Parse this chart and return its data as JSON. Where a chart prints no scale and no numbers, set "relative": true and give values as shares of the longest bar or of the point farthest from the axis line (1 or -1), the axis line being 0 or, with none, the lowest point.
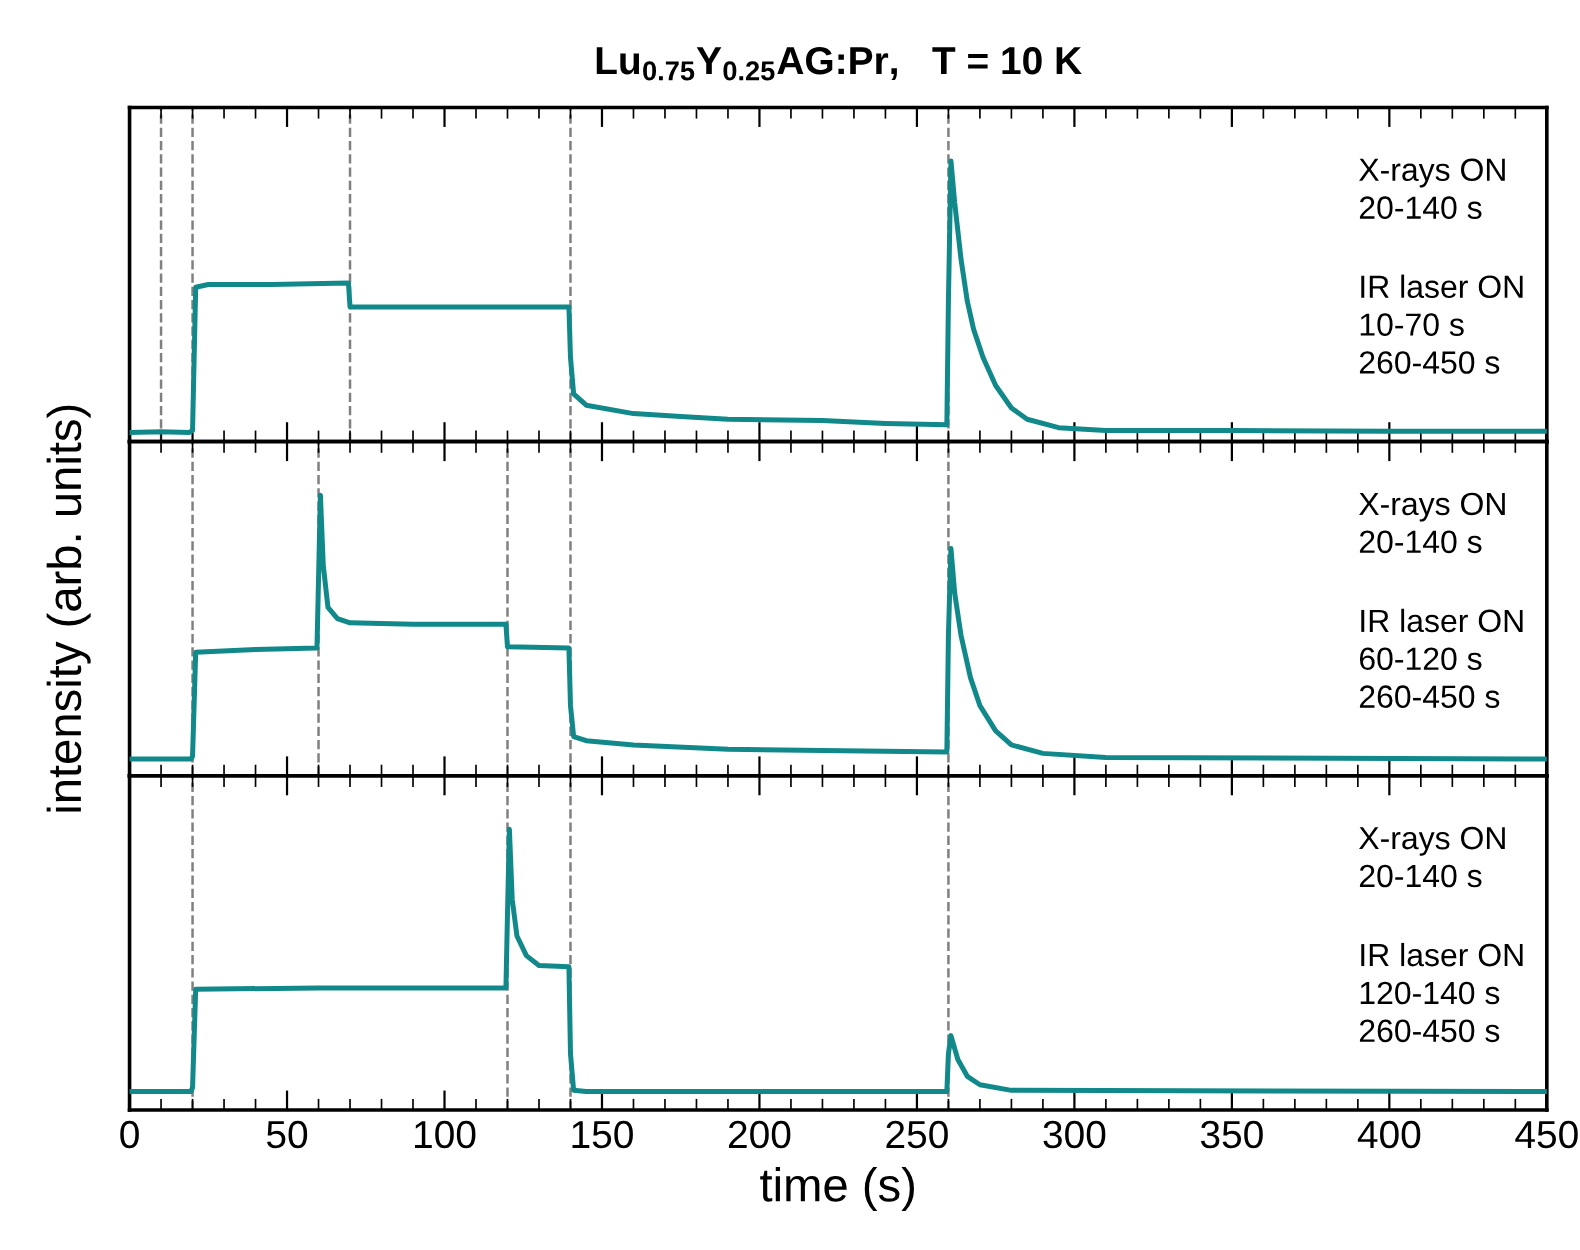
{
  "chart_data": [
    {
      "type": "line",
      "title": "Lu$_{0.75}$Y$_{0.25}$AG:Pr,   T = 10 K",
      "relative": true,
      "xlim": [
        0,
        450
      ],
      "tick_labels": false,
      "line_style": "solid",
      "marker": "none",
      "series": [
        {
          "color": "#11898a",
          "x": [
            0,
            10,
            19,
            20,
            21,
            25,
            45,
            69.5,
            70,
            100,
            139.5,
            140,
            141,
            145,
            160,
            175,
            190,
            220,
            240,
            259.5,
            260,
            260.8,
            262,
            264,
            266,
            268,
            271,
            275,
            280,
            285,
            295,
            310,
            350,
            400,
            450
          ],
          "values": [
            0.033,
            0.035,
            0.033,
            0.04,
            0.55,
            0.56,
            0.56,
            0.565,
            0.48,
            0.48,
            0.48,
            0.3,
            0.17,
            0.13,
            0.1,
            0.09,
            0.08,
            0.075,
            0.065,
            0.06,
            0.5,
            1,
            0.85,
            0.65,
            0.5,
            0.4,
            0.3,
            0.2,
            0.12,
            0.08,
            0.05,
            0.04,
            0.04,
            0.037,
            0.037
          ]
        }
      ],
      "ref_lines": [
        {
          "axis": "x",
          "value": 10,
          "color": "#808080",
          "line_style": "dashed"
        },
        {
          "axis": "x",
          "value": 20,
          "color": "#808080",
          "line_style": "dashed"
        },
        {
          "axis": "x",
          "value": 70,
          "color": "#808080",
          "line_style": "dashed"
        },
        {
          "axis": "x",
          "value": 140,
          "color": "#808080",
          "line_style": "dashed"
        },
        {
          "axis": "x",
          "value": 260,
          "color": "#808080",
          "line_style": "dashed"
        }
      ],
      "annotations": [
        "X-rays ON\n20-140 s",
        "IR laser ON\n10-70 s\n260-450 s"
      ]
    },
    {
      "type": "line",
      "ylabel": "intensity (arb. units)",
      "relative": true,
      "xlim": [
        0,
        450
      ],
      "tick_labels": false,
      "line_style": "solid",
      "marker": "none",
      "series": [
        {
          "color": "#11898a",
          "x": [
            0,
            19.5,
            20,
            21,
            40,
            59.5,
            60,
            60.6,
            61.5,
            63,
            66,
            70,
            90,
            119.5,
            120,
            139.5,
            140,
            141,
            145,
            160,
            190,
            220,
            259.5,
            260,
            260.8,
            262,
            264,
            267,
            270,
            275,
            280,
            290,
            310,
            450
          ],
          "values": [
            0.06,
            0.06,
            0.07,
            0.44,
            0.45,
            0.455,
            0.7,
            1,
            0.75,
            0.6,
            0.56,
            0.545,
            0.54,
            0.54,
            0.46,
            0.455,
            0.25,
            0.14,
            0.125,
            0.11,
            0.095,
            0.09,
            0.085,
            0.5,
            0.81,
            0.65,
            0.5,
            0.35,
            0.25,
            0.16,
            0.11,
            0.08,
            0.065,
            0.06
          ]
        }
      ],
      "ref_lines": [
        {
          "axis": "x",
          "value": 20,
          "color": "#808080",
          "line_style": "dashed"
        },
        {
          "axis": "x",
          "value": 60,
          "color": "#808080",
          "line_style": "dashed"
        },
        {
          "axis": "x",
          "value": 120,
          "color": "#808080",
          "line_style": "dashed"
        },
        {
          "axis": "x",
          "value": 140,
          "color": "#808080",
          "line_style": "dashed"
        },
        {
          "axis": "x",
          "value": 260,
          "color": "#808080",
          "line_style": "dashed"
        }
      ],
      "annotations": [
        "X-rays ON\n20-140 s",
        "IR laser ON\n60-120 s\n260-450 s"
      ]
    },
    {
      "type": "line",
      "xlabel": "time (s)",
      "relative": true,
      "xlim": [
        0,
        450
      ],
      "xticks": [
        0,
        50,
        100,
        150,
        200,
        250,
        300,
        350,
        400,
        450
      ],
      "tick_labels": "x",
      "line_style": "solid",
      "marker": "none",
      "series": [
        {
          "color": "#11898a",
          "x": [
            0,
            19.5,
            20,
            21,
            60,
            119.5,
            120,
            120.6,
            121.5,
            123,
            126,
            130,
            139.5,
            140,
            141,
            145,
            200,
            259.5,
            260,
            260.8,
            263,
            266,
            270,
            280,
            450
          ],
          "values": [
            0.066,
            0.066,
            0.08,
            0.43,
            0.435,
            0.435,
            0.7,
            1,
            0.75,
            0.62,
            0.55,
            0.515,
            0.51,
            0.2,
            0.07,
            0.066,
            0.066,
            0.066,
            0.2,
            0.265,
            0.18,
            0.12,
            0.09,
            0.07,
            0.066
          ]
        }
      ],
      "ref_lines": [
        {
          "axis": "x",
          "value": 20,
          "color": "#808080",
          "line_style": "dashed"
        },
        {
          "axis": "x",
          "value": 120,
          "color": "#808080",
          "line_style": "dashed"
        },
        {
          "axis": "x",
          "value": 140,
          "color": "#808080",
          "line_style": "dashed"
        },
        {
          "axis": "x",
          "value": 260,
          "color": "#808080",
          "line_style": "dashed"
        }
      ],
      "annotations": [
        "X-rays ON\n20-140 s",
        "IR laser ON\n120-140 s\n260-450 s"
      ]
    }
  ]
}
